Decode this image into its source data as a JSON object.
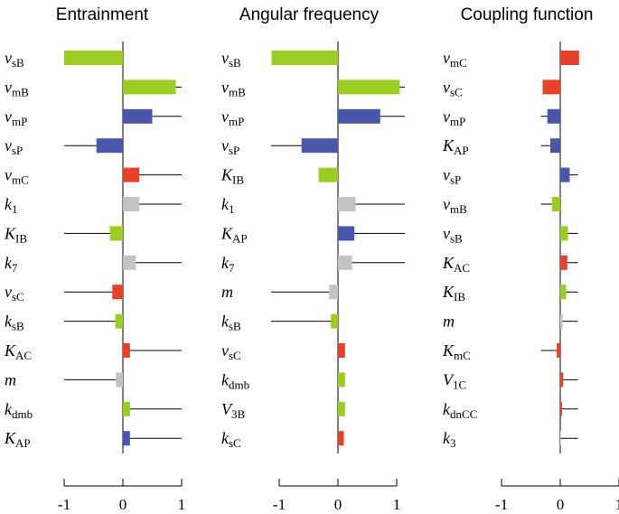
{
  "chart_data": [
    {
      "type": "bar",
      "title": "Entrainment",
      "categories": [
        [
          "v",
          "sB"
        ],
        [
          "v",
          "mB"
        ],
        [
          "v",
          "mP"
        ],
        [
          "v",
          "sP"
        ],
        [
          "v",
          "mC"
        ],
        [
          "k",
          "1"
        ],
        [
          "K",
          "IB"
        ],
        [
          "k",
          "7"
        ],
        [
          "v",
          "sC"
        ],
        [
          "k",
          "sB"
        ],
        [
          "K",
          "AC"
        ],
        [
          "m"
        ],
        [
          "k",
          "dmb"
        ],
        [
          "K",
          "AP"
        ]
      ],
      "values": [
        -1.0,
        0.9,
        0.5,
        -0.45,
        0.28,
        0.28,
        -0.22,
        0.22,
        -0.18,
        -0.13,
        0.12,
        -0.12,
        0.12,
        0.12
      ],
      "whisker_ends": [
        null,
        1,
        1,
        -1,
        1,
        1,
        -1,
        1,
        -1,
        -1,
        1,
        -1,
        1,
        1
      ],
      "colors": [
        "#9acd1f",
        "#9acd1f",
        "#4a56ac",
        "#4a56ac",
        "#e8402a",
        "#c3c3c3",
        "#9acd1f",
        "#c3c3c3",
        "#e8402a",
        "#9acd1f",
        "#e8402a",
        "#c3c3c3",
        "#9acd1f",
        "#4a56ac"
      ],
      "xlim": [
        -1,
        1
      ],
      "xticks": [
        -1,
        0,
        1
      ]
    },
    {
      "type": "bar",
      "title": "Angular frequency",
      "categories": [
        [
          "v",
          "sB"
        ],
        [
          "v",
          "mB"
        ],
        [
          "v",
          "mP"
        ],
        [
          "v",
          "sP"
        ],
        [
          "K",
          "IB"
        ],
        [
          "k",
          "1"
        ],
        [
          "K",
          "AP"
        ],
        [
          "k",
          "7"
        ],
        [
          "m"
        ],
        [
          "k",
          "sB"
        ],
        [
          "v",
          "sC"
        ],
        [
          "k",
          "dmb"
        ],
        [
          "V",
          "3B"
        ],
        [
          "k",
          "sC"
        ]
      ],
      "values": [
        -1.13,
        1.05,
        0.72,
        -0.62,
        -0.33,
        0.3,
        0.28,
        0.24,
        -0.15,
        -0.12,
        0.12,
        0.12,
        0.12,
        0.1
      ],
      "whisker_ends": [
        null,
        1.14,
        1.14,
        -1.14,
        null,
        1.14,
        1.14,
        1.14,
        -1.14,
        -1.14,
        null,
        null,
        null,
        null
      ],
      "colors": [
        "#9acd1f",
        "#9acd1f",
        "#4a56ac",
        "#4a56ac",
        "#9acd1f",
        "#c3c3c3",
        "#4a56ac",
        "#c3c3c3",
        "#c3c3c3",
        "#9acd1f",
        "#e8402a",
        "#9acd1f",
        "#9acd1f",
        "#e8402a"
      ],
      "xlim": [
        -1,
        1
      ],
      "xticks": [
        -1,
        0,
        1
      ]
    },
    {
      "type": "bar",
      "title": "Coupling function",
      "categories": [
        [
          "v",
          "mC"
        ],
        [
          "v",
          "sC"
        ],
        [
          "v",
          "mP"
        ],
        [
          "K",
          "AP"
        ],
        [
          "v",
          "sP"
        ],
        [
          "v",
          "mB"
        ],
        [
          "v",
          "sB"
        ],
        [
          "K",
          "AC"
        ],
        [
          "K",
          "IB"
        ],
        [
          "m"
        ],
        [
          "K",
          "mC"
        ],
        [
          "V",
          "1C"
        ],
        [
          "k",
          "dnCC"
        ],
        [
          "k",
          "3"
        ]
      ],
      "values": [
        0.32,
        -0.3,
        -0.22,
        -0.17,
        0.16,
        -0.14,
        0.13,
        0.12,
        0.1,
        0.04,
        -0.06,
        0.05,
        0.03,
        0.01
      ],
      "whisker_ends": [
        null,
        null,
        -0.33,
        -0.33,
        0.3,
        -0.33,
        0.3,
        0.3,
        0.3,
        0.3,
        -0.33,
        0.3,
        0.3,
        0.3
      ],
      "colors": [
        "#e8402a",
        "#e8402a",
        "#4a56ac",
        "#4a56ac",
        "#4a56ac",
        "#9acd1f",
        "#9acd1f",
        "#e8402a",
        "#9acd1f",
        "#c3c3c3",
        "#e8402a",
        "#e8402a",
        "#e8402a",
        "#c3c3c3"
      ],
      "xlim": [
        -1,
        1
      ],
      "xticks": [
        -1,
        0,
        1
      ]
    }
  ]
}
